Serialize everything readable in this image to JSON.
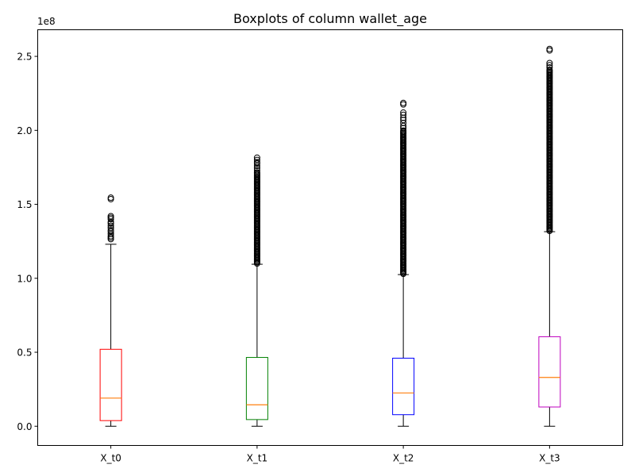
{
  "chart_data": {
    "type": "boxplot",
    "title": "Boxplots of column wallet_age",
    "xlabel": "",
    "ylabel": "",
    "y_offset_label": "1e8",
    "y_scale_factor": 100000000,
    "ylim": [
      -13000000,
      268000000
    ],
    "y_ticks": [
      0,
      50000000,
      100000000,
      150000000,
      200000000,
      250000000
    ],
    "y_tick_labels": [
      "0.0",
      "0.5",
      "1.0",
      "1.5",
      "2.0",
      "2.5"
    ],
    "grid": false,
    "median_color": "#ff7f0e",
    "whisker_color": "#000000",
    "flier_color": "#000000",
    "boxes": [
      {
        "label": "X_t0",
        "color": "#ff0000",
        "whisker_low": 0,
        "q1": 3800000,
        "median": 19000000,
        "q3": 52000000,
        "whisker_high": 123000000,
        "outliers": [
          126500000,
          127500000,
          128500000,
          130000000,
          131500000,
          132500000,
          134000000,
          135500000,
          137000000,
          138000000,
          140000000,
          141000000,
          142000000,
          153500000,
          154500000
        ]
      },
      {
        "label": "X_t1",
        "color": "#008000",
        "whisker_low": 0,
        "q1": 4500000,
        "median": 14500000,
        "q3": 46500000,
        "whisker_high": 109500000,
        "outlier_band": [
          110000000,
          172000000
        ],
        "outliers": [
          173000000,
          174500000,
          176000000,
          177500000,
          178500000,
          180000000,
          181500000
        ]
      },
      {
        "label": "X_t2",
        "color": "#0000ff",
        "whisker_low": 0,
        "q1": 7800000,
        "median": 22500000,
        "q3": 46000000,
        "whisker_high": 102500000,
        "outlier_band": [
          103000000,
          200000000
        ],
        "outliers": [
          201500000,
          203000000,
          205000000,
          207000000,
          208500000,
          210500000,
          212000000,
          217500000,
          218500000
        ]
      },
      {
        "label": "X_t3",
        "color": "#bf00bf",
        "whisker_low": 0,
        "q1": 13000000,
        "median": 33000000,
        "q3": 60500000,
        "whisker_high": 131500000,
        "outlier_band": [
          132000000,
          241000000
        ],
        "outliers": [
          242500000,
          244000000,
          245500000,
          254000000,
          255000000
        ]
      }
    ]
  }
}
